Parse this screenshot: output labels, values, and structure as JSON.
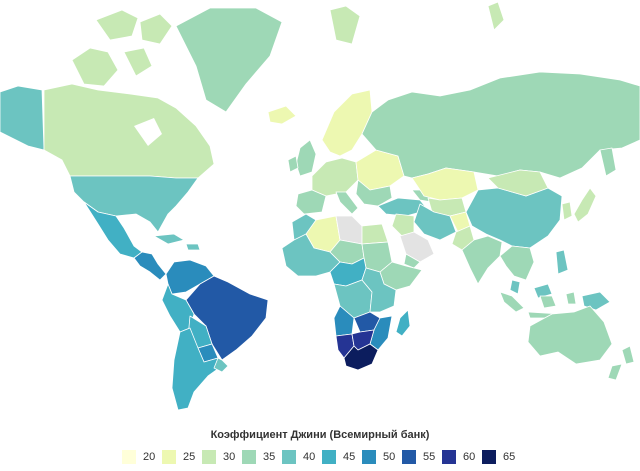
{
  "legend": {
    "title": "Коэффициент Джини (Всемирный банк)",
    "items": [
      {
        "label": "20",
        "color": "#ffffd9"
      },
      {
        "label": "25",
        "color": "#edf8b1"
      },
      {
        "label": "30",
        "color": "#c7e9b4"
      },
      {
        "label": "35",
        "color": "#9ed8b6"
      },
      {
        "label": "40",
        "color": "#6cc4c1"
      },
      {
        "label": "45",
        "color": "#41b0c4"
      },
      {
        "label": "50",
        "color": "#2a8cbc"
      },
      {
        "label": "55",
        "color": "#2259a6"
      },
      {
        "label": "60",
        "color": "#253494"
      },
      {
        "label": "65",
        "color": "#0c1d5e"
      }
    ]
  },
  "no_data_color": "#e3e3e3",
  "regions": [
    {
      "name": "arctic-islands",
      "gini": 30
    },
    {
      "name": "greenland",
      "gini": 35
    },
    {
      "name": "alaska",
      "gini": 40
    },
    {
      "name": "canada",
      "gini": 30
    },
    {
      "name": "usa",
      "gini": 40
    },
    {
      "name": "mexico",
      "gini": 45
    },
    {
      "name": "central-america",
      "gini": 50
    },
    {
      "name": "caribbean",
      "gini": 40
    },
    {
      "name": "colombia-venezuela",
      "gini": 50
    },
    {
      "name": "brazil",
      "gini": 55
    },
    {
      "name": "peru",
      "gini": 45
    },
    {
      "name": "bolivia",
      "gini": 45
    },
    {
      "name": "paraguay",
      "gini": 50
    },
    {
      "name": "argentina-chile",
      "gini": 45
    },
    {
      "name": "uruguay",
      "gini": 40
    },
    {
      "name": "iceland",
      "gini": 25
    },
    {
      "name": "uk-ireland",
      "gini": 35
    },
    {
      "name": "scandinavia",
      "gini": 25
    },
    {
      "name": "western-europe",
      "gini": 30
    },
    {
      "name": "iberia",
      "gini": 35
    },
    {
      "name": "italy",
      "gini": 35
    },
    {
      "name": "eastern-europe",
      "gini": 25
    },
    {
      "name": "balkans",
      "gini": 35
    },
    {
      "name": "turkey",
      "gini": 40
    },
    {
      "name": "russia",
      "gini": 35
    },
    {
      "name": "kazakhstan",
      "gini": 25
    },
    {
      "name": "central-asia",
      "gini": 30
    },
    {
      "name": "caucasus",
      "gini": 35
    },
    {
      "name": "iran",
      "gini": 40
    },
    {
      "name": "iraq-syria",
      "gini": 30
    },
    {
      "name": "saudi-arabia",
      "gini": null
    },
    {
      "name": "yemen",
      "gini": 35
    },
    {
      "name": "afghanistan",
      "gini": 25
    },
    {
      "name": "pakistan",
      "gini": 30
    },
    {
      "name": "india",
      "gini": 35
    },
    {
      "name": "china",
      "gini": 40
    },
    {
      "name": "mongolia",
      "gini": 30
    },
    {
      "name": "korea",
      "gini": 30
    },
    {
      "name": "japan",
      "gini": 30
    },
    {
      "name": "indochina",
      "gini": 35
    },
    {
      "name": "malaysia",
      "gini": 40
    },
    {
      "name": "indonesia",
      "gini": 35
    },
    {
      "name": "philippines",
      "gini": 40
    },
    {
      "name": "png",
      "gini": 40
    },
    {
      "name": "australia",
      "gini": 35
    },
    {
      "name": "new-zealand",
      "gini": 35
    },
    {
      "name": "morocco",
      "gini": 40
    },
    {
      "name": "algeria",
      "gini": 25
    },
    {
      "name": "libya",
      "gini": null
    },
    {
      "name": "egypt",
      "gini": 30
    },
    {
      "name": "west-africa",
      "gini": 40
    },
    {
      "name": "sahel",
      "gini": 35
    },
    {
      "name": "sudan",
      "gini": 35
    },
    {
      "name": "ethiopia-horn",
      "gini": 35
    },
    {
      "name": "central-africa",
      "gini": 45
    },
    {
      "name": "drc",
      "gini": 40
    },
    {
      "name": "east-africa",
      "gini": 40
    },
    {
      "name": "angola",
      "gini": 50
    },
    {
      "name": "zambia",
      "gini": 55
    },
    {
      "name": "mozambique",
      "gini": 50
    },
    {
      "name": "namibia",
      "gini": 60
    },
    {
      "name": "botswana",
      "gini": 60
    },
    {
      "name": "south-africa",
      "gini": 65
    },
    {
      "name": "madagascar",
      "gini": 45
    }
  ]
}
